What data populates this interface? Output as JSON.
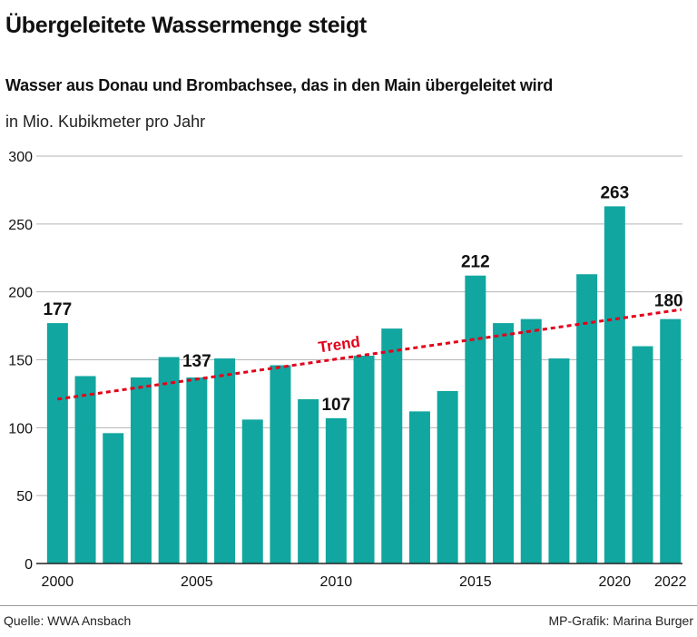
{
  "header": {
    "title": "Übergeleitete Wassermenge steigt",
    "subtitle": "Wasser aus Donau und Brombachsee, das in den Main übergeleitet wird",
    "unit": "in Mio. Kubikmeter pro Jahr"
  },
  "footer": {
    "source": "Quelle: WWA Ansbach",
    "credit": "MP-Grafik: Marina Burger"
  },
  "colors": {
    "bar": "#12A6A0",
    "trend": "#E2001A",
    "grid": "#b5b5b5",
    "text": "#111111"
  },
  "chart_data": {
    "type": "bar",
    "title": "Übergeleitete Wassermenge steigt",
    "ylabel": "in Mio. Kubikmeter pro Jahr",
    "ylim": [
      0,
      300
    ],
    "yticks": [
      0,
      50,
      100,
      150,
      200,
      250,
      300
    ],
    "categories": [
      2000,
      2001,
      2002,
      2003,
      2004,
      2005,
      2006,
      2007,
      2008,
      2009,
      2010,
      2011,
      2012,
      2013,
      2014,
      2015,
      2016,
      2017,
      2018,
      2019,
      2020,
      2021,
      2022
    ],
    "xtick_labels": [
      {
        "year": 2000,
        "label": "2000"
      },
      {
        "year": 2005,
        "label": "2005"
      },
      {
        "year": 2010,
        "label": "2010"
      },
      {
        "year": 2015,
        "label": "2015"
      },
      {
        "year": 2020,
        "label": "2020"
      },
      {
        "year": 2022,
        "label": "2022"
      }
    ],
    "values": [
      177,
      138,
      96,
      137,
      152,
      137,
      151,
      106,
      146,
      121,
      107,
      153,
      173,
      112,
      127,
      212,
      177,
      180,
      151,
      213,
      263,
      160,
      180
    ],
    "value_labels": [
      {
        "year": 2000,
        "label": "177"
      },
      {
        "year": 2005,
        "label": "137"
      },
      {
        "year": 2010,
        "label": "107"
      },
      {
        "year": 2015,
        "label": "212"
      },
      {
        "year": 2020,
        "label": "263"
      },
      {
        "year": 2022,
        "label": "180"
      }
    ],
    "trend": {
      "label": "Trend",
      "start": {
        "year": 2000,
        "value": 121
      },
      "end": {
        "year": 2022,
        "value": 187
      }
    }
  }
}
